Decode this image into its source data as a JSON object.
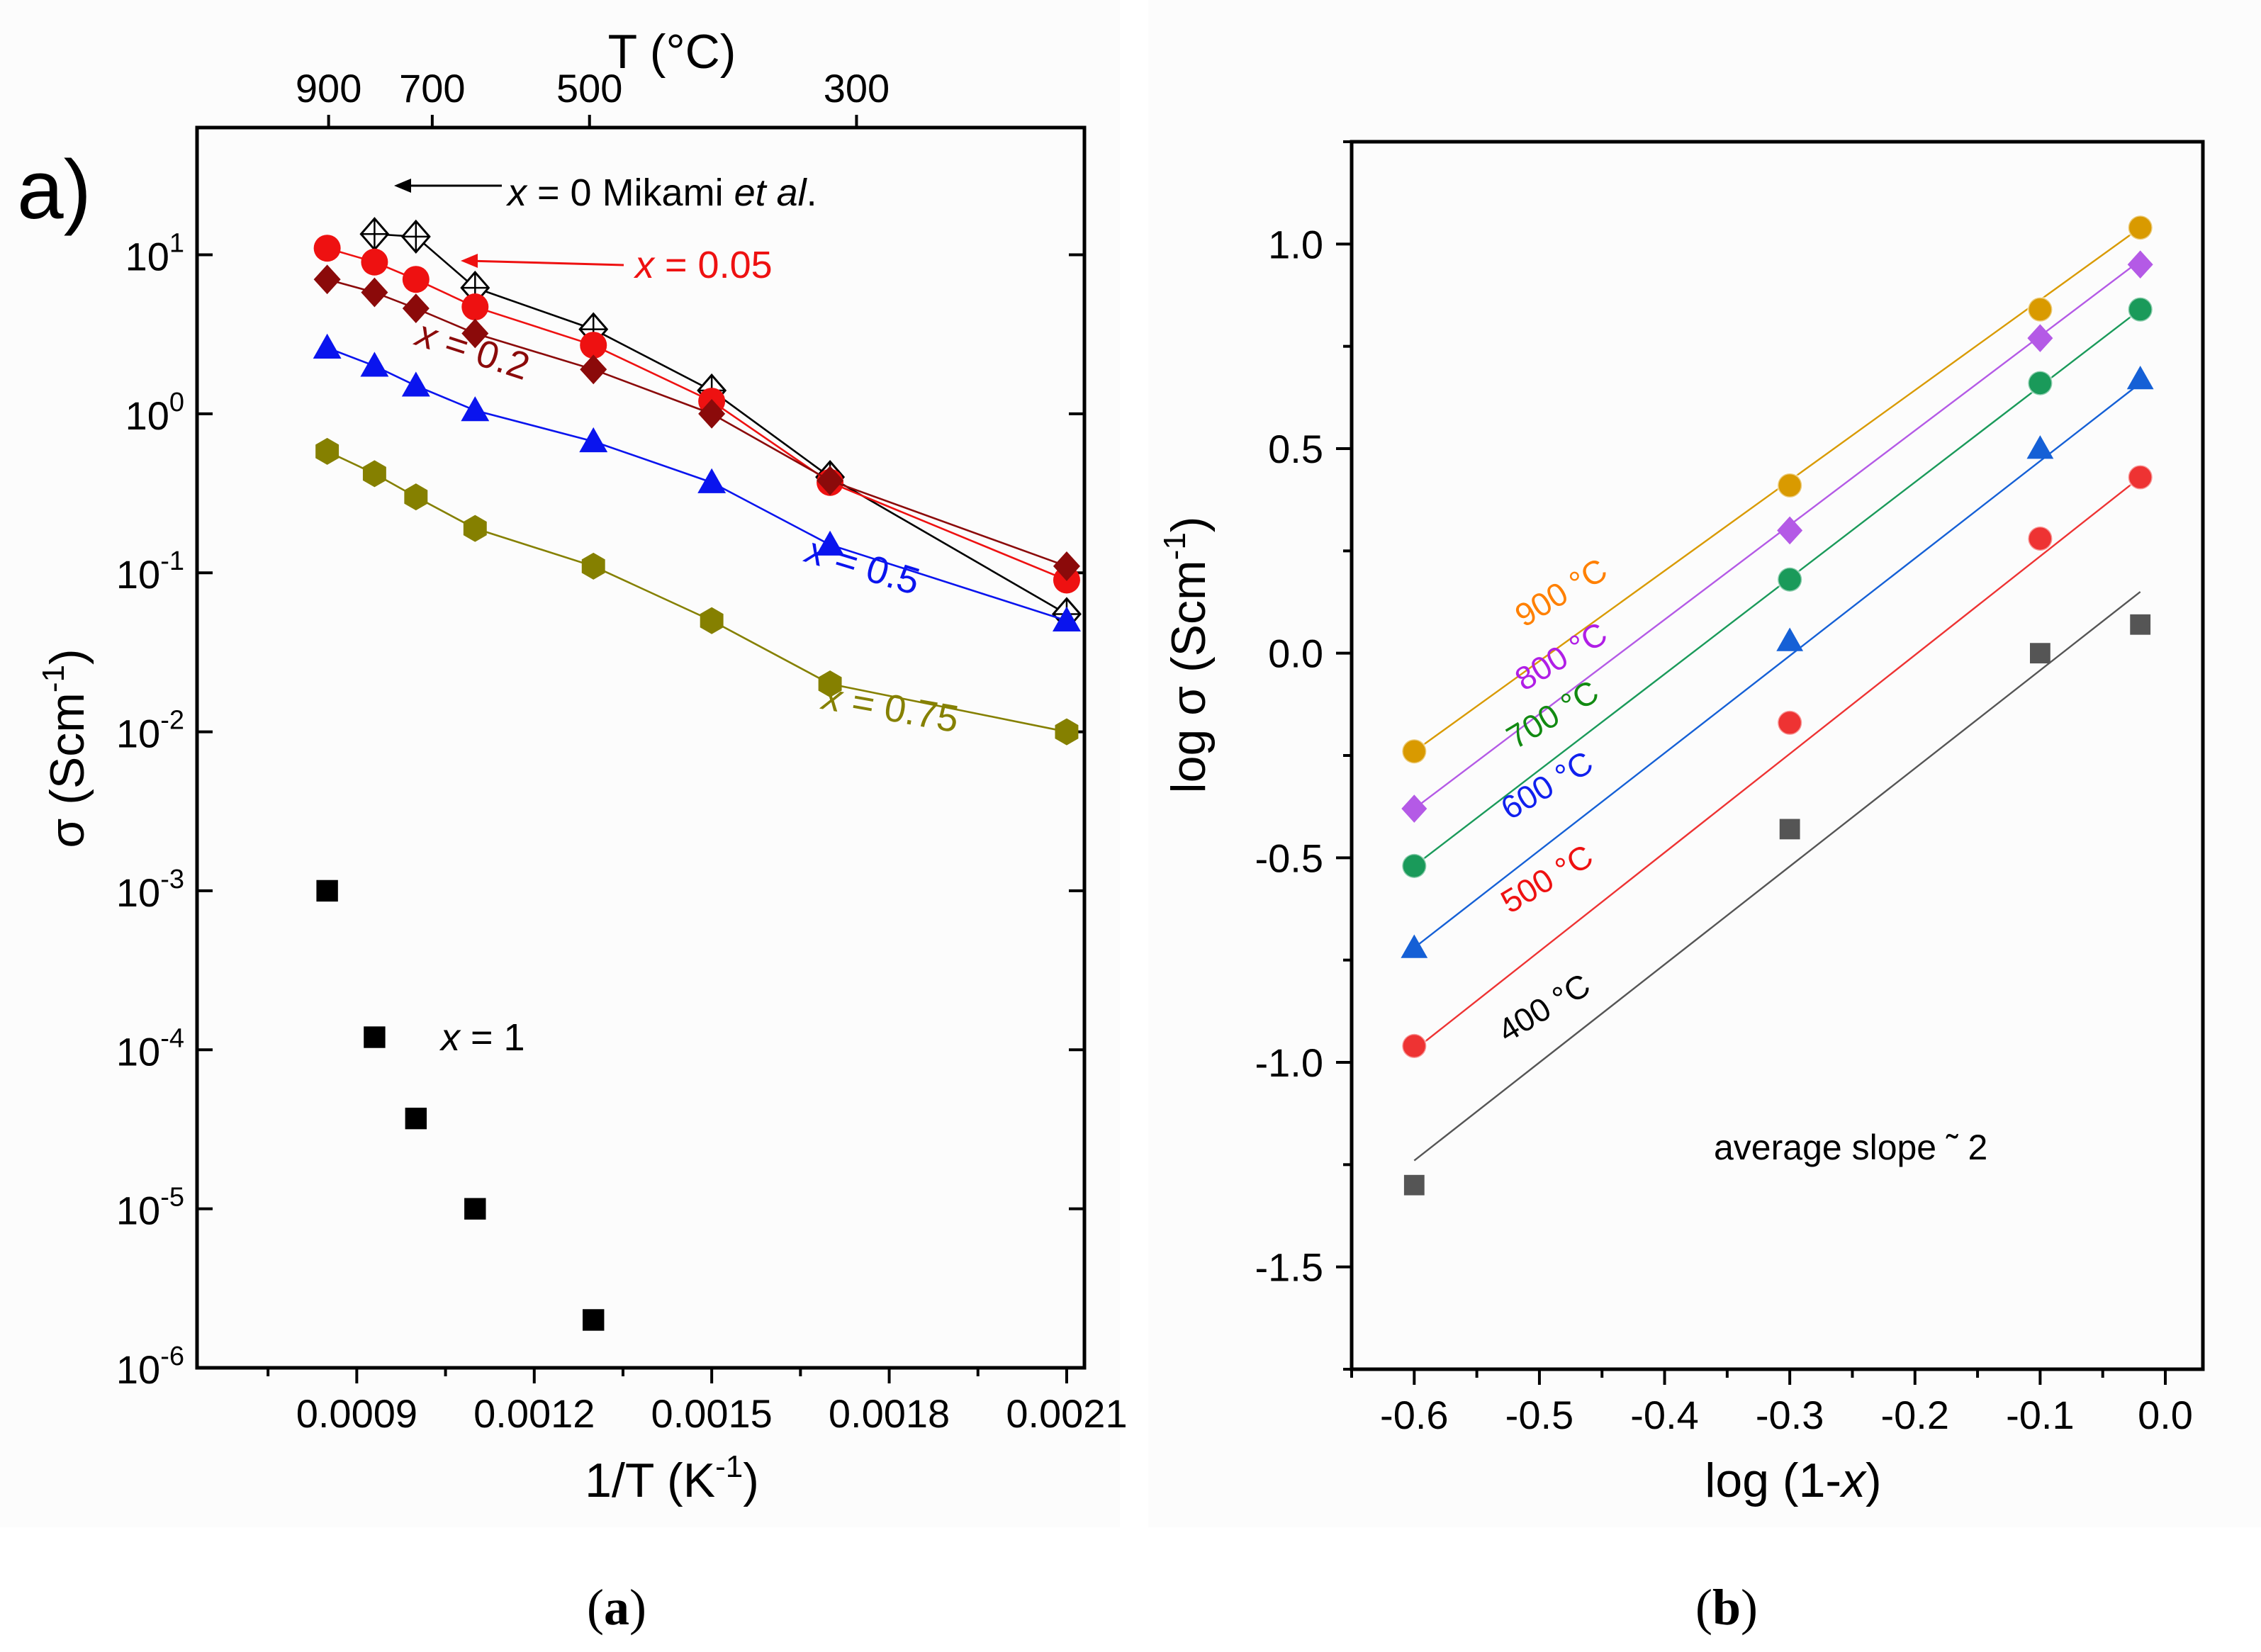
{
  "chart_data": [
    {
      "panel": "a",
      "type": "line",
      "panel_label": "a)",
      "caption": "a",
      "xlabel": "1/T (K",
      "xlabel_sup": "-1",
      "xlabel_close": ")",
      "ylabel": "σ (Scm",
      "ylabel_sup": "-1",
      "ylabel_close": ")",
      "y_scale": "log",
      "xlim": [
        0.00063,
        0.00213
      ],
      "ylim_exp": [
        -6,
        1.8
      ],
      "xticks": [
        0.0009,
        0.0012,
        0.0015,
        0.0018,
        0.0021
      ],
      "xtick_labels": [
        "0.0009",
        "0.0012",
        "0.0015",
        "0.0018",
        "0.0021"
      ],
      "yticks": [
        {
          "exp": 1,
          "label_base": "10",
          "label_exp": "1"
        },
        {
          "exp": 0,
          "label_base": "10",
          "label_exp": "0"
        },
        {
          "exp": -1,
          "label_base": "10",
          "label_exp": "-1"
        },
        {
          "exp": -2,
          "label_base": "10",
          "label_exp": "-2"
        },
        {
          "exp": -3,
          "label_base": "10",
          "label_exp": "-3"
        },
        {
          "exp": -4,
          "label_base": "10",
          "label_exp": "-4"
        },
        {
          "exp": -5,
          "label_base": "10",
          "label_exp": "-5"
        },
        {
          "exp": -6,
          "label_base": "10",
          "label_exp": "-6"
        }
      ],
      "top_axis_title": "T (°C)",
      "top_ticks": [
        {
          "label": "900",
          "celsius": 900
        },
        {
          "label": "700",
          "celsius": 700
        },
        {
          "label": "500",
          "celsius": 500
        },
        {
          "label": "300",
          "celsius": 300
        }
      ],
      "series": [
        {
          "name": "x = 0 Mikami et al.",
          "color": "#000000",
          "marker": "diamond-open",
          "connected": true,
          "x": [
            0.00093,
            0.001,
            0.0011,
            0.0013,
            0.0015,
            0.0017,
            0.0021
          ],
          "y": [
            13.5,
            13.0,
            6.2,
            3.4,
            1.4,
            0.4,
            0.055
          ]
        },
        {
          "name": "x = 0.05",
          "color": "#ee1111",
          "marker": "circle",
          "connected": true,
          "x": [
            0.00085,
            0.00093,
            0.001,
            0.0011,
            0.0013,
            0.0015,
            0.0017,
            0.0021
          ],
          "y": [
            11.0,
            9.0,
            7.0,
            4.7,
            2.7,
            1.2,
            0.37,
            0.09
          ]
        },
        {
          "name": "x = 0.2",
          "color": "#8b0a0a",
          "marker": "diamond",
          "connected": true,
          "x": [
            0.00085,
            0.00093,
            0.001,
            0.0011,
            0.0013,
            0.0015,
            0.0017,
            0.0021
          ],
          "y": [
            7.0,
            5.8,
            4.6,
            3.2,
            1.9,
            1.0,
            0.38,
            0.11
          ]
        },
        {
          "name": "x = 0.5",
          "color": "#0a14ee",
          "marker": "triangle",
          "connected": true,
          "x": [
            0.00085,
            0.00093,
            0.001,
            0.0011,
            0.0013,
            0.0015,
            0.0017,
            0.0021
          ],
          "y": [
            2.6,
            2.0,
            1.5,
            1.05,
            0.67,
            0.37,
            0.15,
            0.05
          ]
        },
        {
          "name": "x = 0.75",
          "color": "#858000",
          "marker": "hexagon",
          "connected": true,
          "x": [
            0.00085,
            0.00093,
            0.001,
            0.0011,
            0.0013,
            0.0015,
            0.0017,
            0.0021
          ],
          "y": [
            0.58,
            0.42,
            0.3,
            0.19,
            0.11,
            0.05,
            0.02,
            0.01
          ]
        },
        {
          "name": "x = 1",
          "color": "#000000",
          "marker": "square",
          "connected": false,
          "x": [
            0.00085,
            0.00093,
            0.001,
            0.0011,
            0.0013
          ],
          "y": [
            0.001,
            0.00012,
            3.7e-05,
            1e-05,
            2e-06
          ]
        }
      ],
      "annotations": [
        {
          "id": "x0",
          "pre": "x",
          "mid": " = 0 Mikami ",
          "ital": "et al",
          "post": ".",
          "color": "#000000"
        },
        {
          "id": "x005",
          "pre": "x",
          "mid": " = 0.05",
          "ital": "",
          "post": "",
          "color": "#ee1111"
        },
        {
          "id": "x02",
          "pre": "x",
          "mid": " = 0.2",
          "ital": "",
          "post": "",
          "color": "#8b0a0a"
        },
        {
          "id": "x05",
          "pre": "x",
          "mid": " = 0.5",
          "ital": "",
          "post": "",
          "color": "#0a14ee"
        },
        {
          "id": "x075",
          "pre": "x",
          "mid": " = 0.75",
          "ital": "",
          "post": "",
          "color": "#858000"
        },
        {
          "id": "x1",
          "pre": "x",
          "mid": " = 1",
          "ital": "",
          "post": "",
          "color": "#000000"
        }
      ]
    },
    {
      "panel": "b",
      "type": "scatter",
      "caption": "b",
      "xlabel_pre": "log (1-",
      "xlabel_ital": "x",
      "xlabel_post": ")",
      "ylabel": "log σ (Scm",
      "ylabel_sup": "-1",
      "ylabel_close": ")",
      "xlim": [
        -0.65,
        0.03
      ],
      "ylim": [
        -1.75,
        1.25
      ],
      "xticks": [
        -0.6,
        -0.5,
        -0.4,
        -0.3,
        -0.2,
        -0.1,
        0.0
      ],
      "xtick_labels": [
        "-0.6",
        "-0.5",
        "-0.4",
        "-0.3",
        "-0.2",
        "-0.1",
        "0.0"
      ],
      "yticks": [
        1.0,
        0.5,
        0.0,
        -0.5,
        -1.0,
        -1.5
      ],
      "ytick_labels": [
        "1.0",
        "0.5",
        "0.0",
        "-0.5",
        "-1.0",
        "-1.5"
      ],
      "x": [
        -0.6,
        -0.3,
        -0.1,
        -0.02
      ],
      "series": [
        {
          "name": "900 °C",
          "color": "#d99a00",
          "marker": "sphere",
          "values": [
            -0.24,
            0.41,
            0.84,
            1.04
          ],
          "fit": [
            -0.24,
            1.04
          ]
        },
        {
          "name": "800 °C",
          "color": "#b45ae6",
          "marker": "diamond",
          "values": [
            -0.38,
            0.3,
            0.77,
            0.95
          ],
          "fit": [
            -0.38,
            0.96
          ]
        },
        {
          "name": "700 °C",
          "color": "#1a9a5a",
          "marker": "sphere",
          "values": [
            -0.52,
            0.18,
            0.66,
            0.84
          ],
          "fit": [
            -0.52,
            0.84
          ]
        },
        {
          "name": "600 °C",
          "color": "#1560d6",
          "marker": "triangle",
          "values": [
            -0.72,
            0.03,
            0.5,
            0.67
          ],
          "fit": [
            -0.72,
            0.66
          ]
        },
        {
          "name": "500 °C",
          "color": "#ee3333",
          "marker": "sphere",
          "values": [
            -0.96,
            -0.17,
            0.28,
            0.43
          ],
          "fit": [
            -0.97,
            0.43
          ]
        },
        {
          "name": "400 °C",
          "color": "#555555",
          "marker": "square",
          "values": [
            -1.3,
            -0.43,
            0.0,
            0.07
          ],
          "fit": [
            -1.24,
            0.15
          ]
        }
      ],
      "series_label_colors": [
        "#ff8000",
        "#b01ee6",
        "#128a12",
        "#1020ee",
        "#ee1111",
        "#000000"
      ],
      "annotation": "average slope ˜  2"
    }
  ]
}
